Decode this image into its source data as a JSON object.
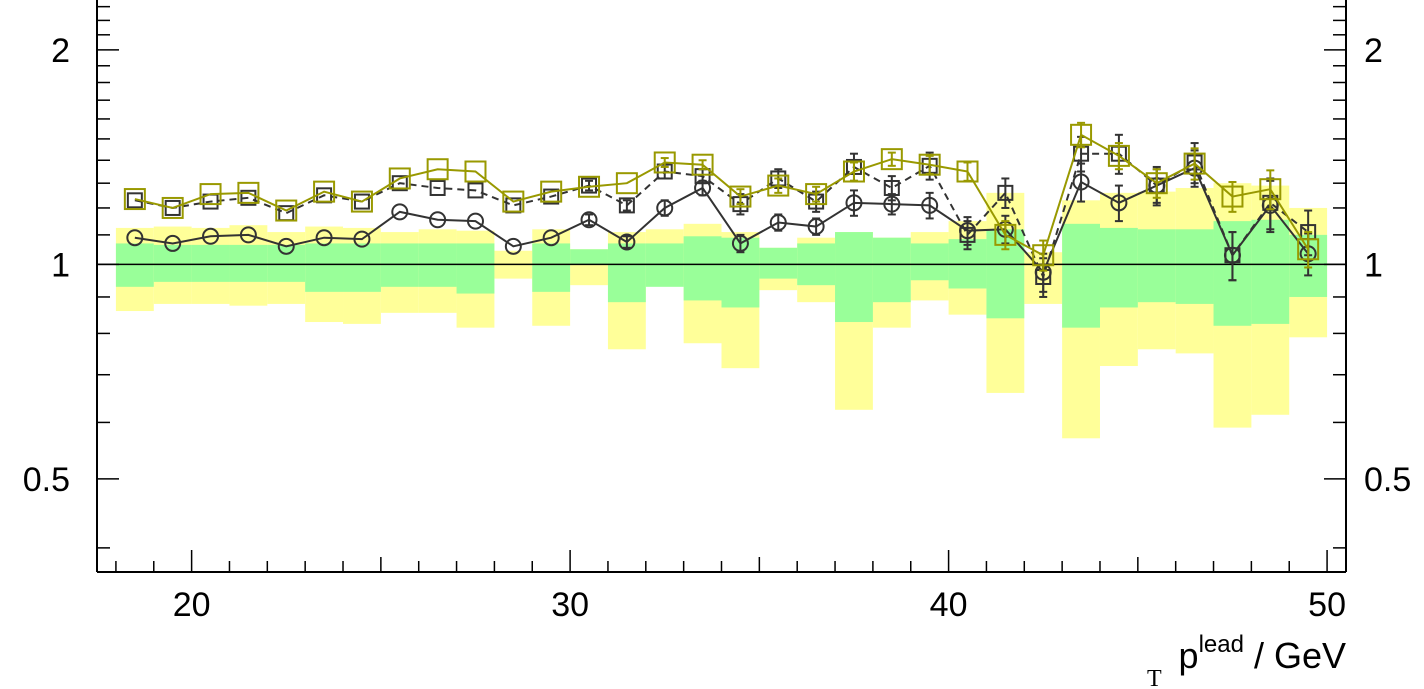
{
  "chart_data": {
    "type": "line",
    "title": "",
    "xlabel": {
      "base": "p",
      "sup": "lead",
      "sub": "T",
      "unit": " / GeV"
    },
    "ylabel": "",
    "xlim": [
      17.5,
      50.5
    ],
    "ylim": [
      0.37,
      2.35
    ],
    "y_scale": "log",
    "x_ticks": [
      20,
      30,
      40,
      50
    ],
    "y_ticks_left": [
      "0.5",
      "1",
      "2"
    ],
    "y_ticks_right": [
      "0.5",
      "1",
      "2"
    ],
    "y_tick_values": [
      0.5,
      1,
      2
    ],
    "reference_line": 1,
    "grid": false,
    "legend": "none",
    "bands": {
      "x_edges": [
        18,
        19,
        20,
        21,
        22,
        23,
        24,
        25,
        26,
        27,
        28,
        29,
        30,
        31,
        32,
        33,
        34,
        35,
        36,
        37,
        38,
        39,
        40,
        41,
        42,
        43,
        44,
        45,
        46,
        47,
        48,
        49,
        50
      ],
      "outer": {
        "color": "#ffff99",
        "low": [
          0.86,
          0.88,
          0.88,
          0.875,
          0.88,
          0.83,
          0.825,
          0.855,
          0.855,
          0.815,
          0.955,
          0.82,
          0.935,
          0.76,
          0.935,
          0.775,
          0.715,
          0.92,
          0.885,
          0.625,
          0.815,
          0.89,
          0.85,
          0.66,
          0.88,
          0.57,
          0.72,
          0.76,
          0.75,
          0.59,
          0.615,
          0.79
        ],
        "high": [
          1.125,
          1.13,
          1.125,
          1.135,
          1.11,
          1.13,
          1.125,
          1.11,
          1.12,
          1.115,
          1.045,
          1.12,
          1.05,
          1.11,
          1.12,
          1.14,
          1.11,
          1.055,
          1.09,
          1.11,
          1.09,
          1.11,
          1.15,
          1.26,
          1.04,
          1.23,
          1.26,
          1.265,
          1.28,
          1.3,
          1.29,
          1.2
        ]
      },
      "inner": {
        "color": "#99ff99",
        "low": [
          0.93,
          0.945,
          0.945,
          0.945,
          0.945,
          0.915,
          0.915,
          0.93,
          0.93,
          0.91,
          1.0,
          0.915,
          1.0,
          0.885,
          0.93,
          0.89,
          0.87,
          0.955,
          0.935,
          0.83,
          0.885,
          0.95,
          0.925,
          0.84,
          1.0,
          0.815,
          0.87,
          0.885,
          0.88,
          0.82,
          0.825,
          0.9
        ],
        "high": [
          1.07,
          1.065,
          1.065,
          1.065,
          1.065,
          1.07,
          1.07,
          1.07,
          1.07,
          1.07,
          1.0,
          1.07,
          1.05,
          1.07,
          1.07,
          1.095,
          1.09,
          1.055,
          1.07,
          1.11,
          1.09,
          1.07,
          1.085,
          1.12,
          1.0,
          1.14,
          1.125,
          1.12,
          1.12,
          1.15,
          1.155,
          1.1
        ]
      }
    },
    "x_centers": [
      18.5,
      19.5,
      20.5,
      21.5,
      22.5,
      23.5,
      24.5,
      25.5,
      26.5,
      27.5,
      28.5,
      29.5,
      30.5,
      31.5,
      32.5,
      33.5,
      34.5,
      35.5,
      36.5,
      37.5,
      38.5,
      39.5,
      40.5,
      41.5,
      42.5,
      43.5,
      44.5,
      45.5,
      46.5,
      47.5,
      48.5,
      49.5
    ],
    "series": [
      {
        "marker": "circle",
        "line": "solid",
        "color": "#333333",
        "values": [
          1.09,
          1.07,
          1.095,
          1.1,
          1.06,
          1.09,
          1.085,
          1.185,
          1.155,
          1.15,
          1.06,
          1.09,
          1.155,
          1.075,
          1.2,
          1.28,
          1.07,
          1.145,
          1.13,
          1.22,
          1.215,
          1.21,
          1.115,
          1.12,
          0.975,
          1.305,
          1.22,
          1.29,
          1.365,
          1.03,
          1.21,
          1.035
        ],
        "err": [
          0.0,
          0.0,
          0.0,
          0.0,
          0.0,
          0.0,
          0.0,
          0.0,
          0.0,
          0.0,
          0.0,
          0.0,
          0.02,
          0.02,
          0.03,
          0.03,
          0.03,
          0.03,
          0.03,
          0.05,
          0.04,
          0.05,
          0.05,
          0.05,
          0.06,
          0.08,
          0.07,
          0.07,
          0.08,
          0.08,
          0.1,
          0.07
        ]
      },
      {
        "marker": "square",
        "line": "dashed",
        "color": "#333333",
        "values": [
          1.23,
          1.2,
          1.225,
          1.24,
          1.18,
          1.25,
          1.225,
          1.3,
          1.28,
          1.27,
          1.21,
          1.245,
          1.29,
          1.21,
          1.35,
          1.33,
          1.215,
          1.32,
          1.225,
          1.37,
          1.28,
          1.375,
          1.1,
          1.26,
          0.96,
          1.43,
          1.43,
          1.29,
          1.39,
          1.03,
          1.22,
          1.11
        ],
        "err": [
          0.0,
          0.0,
          0.0,
          0.0,
          0.0,
          0.0,
          0.0,
          0.0,
          0.0,
          0.0,
          0.0,
          0.0,
          0.02,
          0.02,
          0.03,
          0.03,
          0.04,
          0.04,
          0.04,
          0.06,
          0.05,
          0.06,
          0.05,
          0.06,
          0.06,
          0.08,
          0.09,
          0.08,
          0.09,
          0.08,
          0.1,
          0.08
        ]
      },
      {
        "marker": "square",
        "line": "solid",
        "color": "#999900",
        "values": [
          1.235,
          1.2,
          1.255,
          1.26,
          1.19,
          1.265,
          1.225,
          1.32,
          1.36,
          1.35,
          1.225,
          1.265,
          1.285,
          1.3,
          1.39,
          1.38,
          1.245,
          1.29,
          1.255,
          1.35,
          1.405,
          1.38,
          1.35,
          1.1,
          1.03,
          1.52,
          1.42,
          1.3,
          1.385,
          1.245,
          1.275,
          1.05
        ],
        "err": [
          0.0,
          0.0,
          0.0,
          0.0,
          0.0,
          0.0,
          0.0,
          0.0,
          0.0,
          0.0,
          0.0,
          0.0,
          0.0,
          0.0,
          0.02,
          0.02,
          0.03,
          0.03,
          0.03,
          0.04,
          0.03,
          0.04,
          0.04,
          0.05,
          0.05,
          0.06,
          0.06,
          0.06,
          0.07,
          0.06,
          0.08,
          0.06
        ]
      }
    ]
  }
}
